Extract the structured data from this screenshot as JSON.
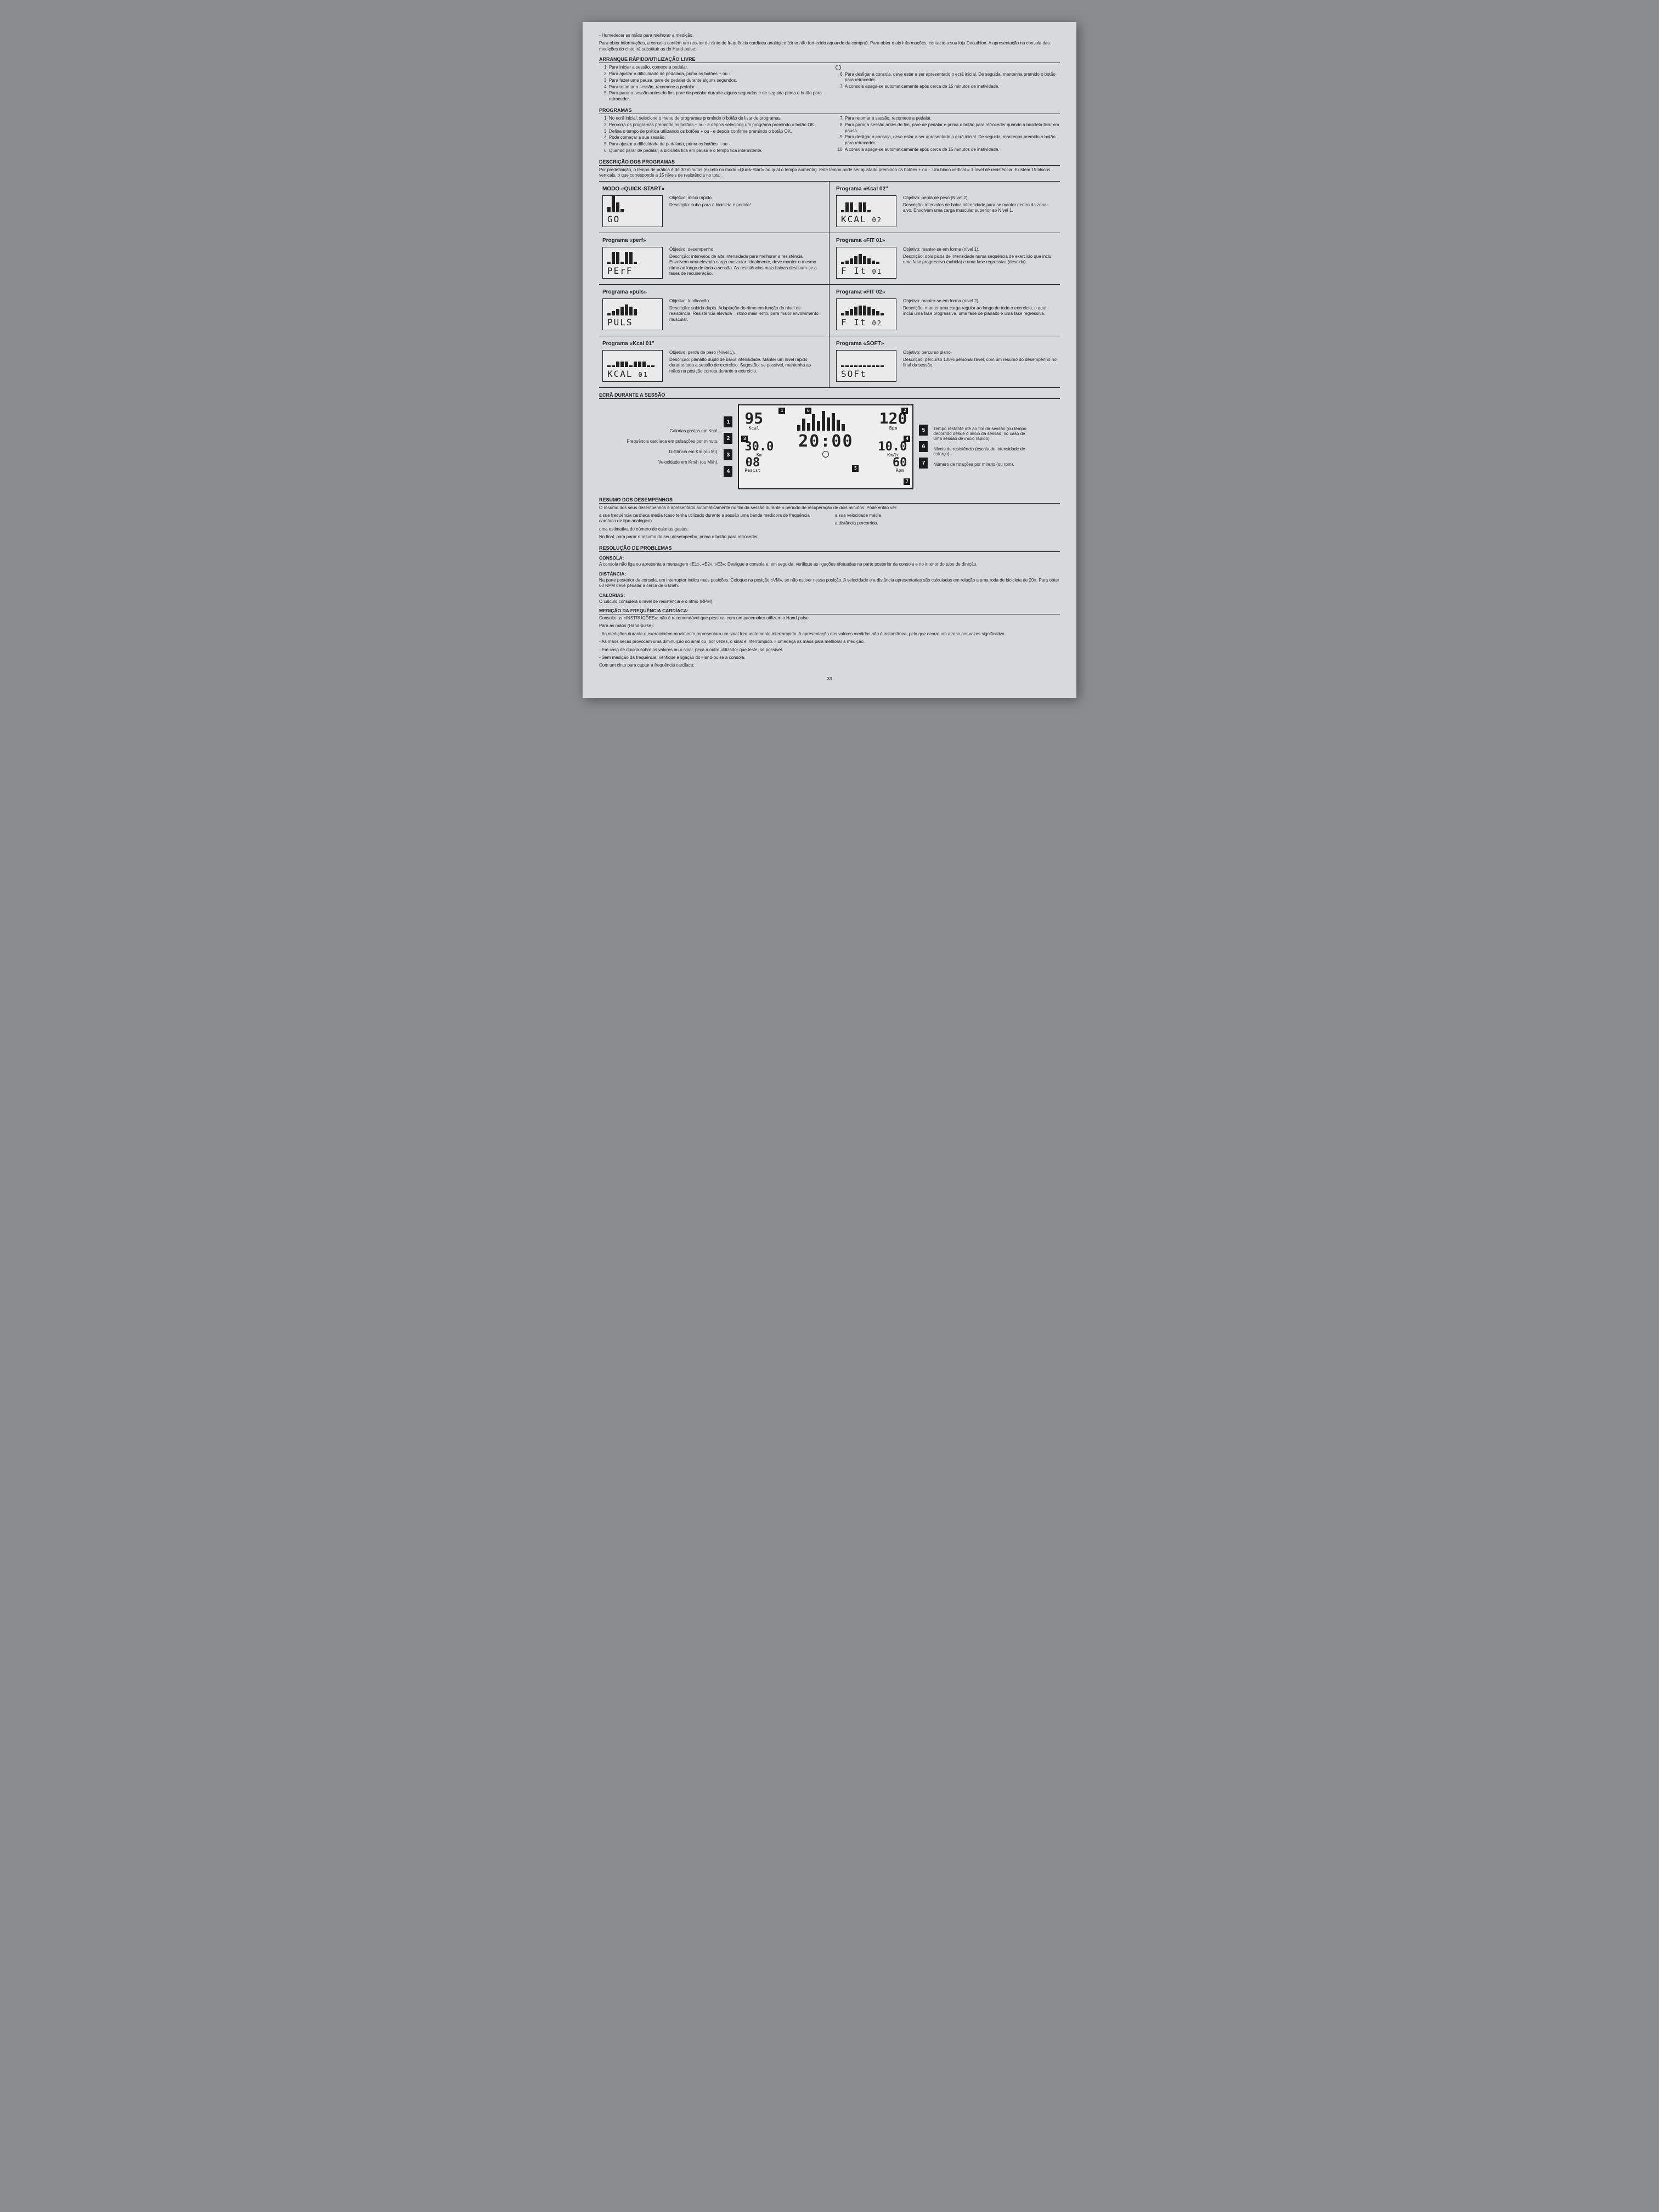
{
  "intro": {
    "tip": "- Humedecer as mãos para melhorar a medição.",
    "info": "Para obter informações, a consola contém um recetor de cinto de frequência cardíaca analógico (cinto não fornecido aquando da compra). Para obter mais informações, contacte a sua loja Decathlon. A apresentação na consola das medições do cinto irá substituir as do Hand-pulse."
  },
  "sections": {
    "quickstart_title": "ARRANQUE RÁPIDO/UTILIZAÇÃO LIVRE",
    "quickstart_left": [
      "Para iniciar a sessão, comece a pedalar.",
      "Para ajustar a dificuldade de pedalada, prima os botões + ou -.",
      "Para fazer uma pausa, pare de pedalar durante alguns segundos.",
      "Para retomar a sessão, recomece a pedalar.",
      "Para parar a sessão antes do fim, pare de pedalar durante alguns segundos e de seguida prima o botão para retroceder."
    ],
    "quickstart_right": [
      "Para desligar a consola, deve estar a ser apresentado o ecrã inicial. De seguida, mantenha premido o botão para retroceder.",
      "A consola apaga-se automaticamente após cerca de 15 minutos de inatividade."
    ],
    "programas_title": "PROGRAMAS",
    "programas_left": [
      "No ecrã inicial, selecione o menu de programas premindo o botão de lista de programas.",
      "Percorra os programas premindo os botões + ou - e depois selecione um programa premindo o botão OK.",
      "Defina o tempo de prática utilizando os botões + ou - e depois confirme premindo o botão OK.",
      "Pode começar a sua sessão.",
      "Para ajustar a dificuldade de pedalada, prima os botões + ou -.",
      "Quando parar de pedalar, a bicicleta fica em pausa e o tempo fica intermitente."
    ],
    "programas_right": [
      "Para retomar a sessão, recomece a pedalar.",
      "Para parar a sessão antes do fim, pare de pedalar e prima o botão para retroceder quando a bicicleta ficar em pausa.",
      "Para desligar a consola, deve estar a ser apresentado o ecrã inicial. De seguida, mantenha premido o botão para retroceder.",
      "A consola apaga-se automaticamente após cerca de 15 minutos de inatividade."
    ],
    "desc_title": "DESCRIÇÃO DOS PROGRAMAS",
    "desc_text": "Por predefinição, o tempo de prática é de 30 minutos (exceto no modo «Quick-Start» no qual o tempo aumenta). Este tempo pode ser ajustado premindo os botões + ou -. Um bloco vertical = 1 nível de resistência. Existem 15 blocos verticais, o que corresponde a 15 níveis de resistência no total."
  },
  "programs": [
    {
      "title": "MODO «QUICK-START»",
      "lcd": "GO",
      "sub": "",
      "bars": [
        10,
        30,
        18,
        6
      ],
      "obj": "Objetivo: início rápido.",
      "desc": "Descrição: suba para a bicicleta e pedale!"
    },
    {
      "title": "Programa «Kcal 02\"",
      "lcd": "KCAL",
      "sub": "02",
      "bars": [
        4,
        18,
        18,
        4,
        18,
        18,
        4
      ],
      "obj": "Objetivo: perda de peso (Nível 2).",
      "desc": "Descrição: intervalos de baixa intensidade para se manter dentro da zona-alvo. Envolvem uma carga muscular superior ao Nível 1."
    },
    {
      "title": "Programa «perf»",
      "lcd": "PErF",
      "sub": "",
      "bars": [
        4,
        22,
        22,
        4,
        22,
        22,
        4
      ],
      "obj": "Objetivo: desempenho",
      "desc": "Descrição: intervalos de alta intensidade para melhorar a resistência. Envolvem uma elevada carga muscular. Idealmente, deve manter o mesmo ritmo ao longo de toda a sessão. As resistências mais baixas destinam-se a fases de recuperação."
    },
    {
      "title": "Programa «FIT 01»",
      "lcd": "F It",
      "sub": "01",
      "bars": [
        4,
        6,
        10,
        14,
        18,
        14,
        10,
        6,
        4
      ],
      "obj": "Objetivo: manter-se em forma (nível 1).",
      "desc": "Descrição: dois picos de intensidade numa sequência de exercício que inclui uma fase progressiva (subida) e uma fase regressiva (descida)."
    },
    {
      "title": "Programa «puls»",
      "lcd": "PULS",
      "sub": "",
      "bars": [
        4,
        8,
        12,
        16,
        20,
        16,
        12
      ],
      "obj": "Objetivo: tonificação",
      "desc": "Descrição: subida dupla. Adaptação do ritmo em função do nível de resistência. Resistência elevada = ritmo mais lento, para maior envolvimento muscular."
    },
    {
      "title": "Programa «FIT 02»",
      "lcd": "F It",
      "sub": "02",
      "bars": [
        4,
        8,
        12,
        16,
        18,
        18,
        16,
        12,
        8,
        4
      ],
      "obj": "Objetivo: manter-se em forma (nível 2).",
      "desc": "Descrição: manter uma carga regular ao longo de todo o exercício, o qual inclui uma fase progressiva, uma fase de planalto e uma fase regressiva."
    },
    {
      "title": "Programa «Kcal 01\"",
      "lcd": "KCAL",
      "sub": "01",
      "bars": [
        3,
        3,
        10,
        10,
        10,
        3,
        10,
        10,
        10,
        3,
        3
      ],
      "obj": "Objetivo: perda de peso (Nível 1).",
      "desc": "Descrição: planalto duplo de baixa intensidade. Manter um nível rápido durante toda a sessão de exercício. Sugestão: se possível, mantenha as mãos na posição correta durante o exercício."
    },
    {
      "title": "Programa «SOFT»",
      "lcd": "SOFt",
      "sub": "",
      "bars": [
        3,
        3,
        3,
        3,
        3,
        3,
        3,
        3,
        3,
        3
      ],
      "obj": "Objetivo: percurso plano.",
      "desc": "Descrição: percurso 100% personalizável, com um resumo do desempenho no final da sessão."
    }
  ],
  "session": {
    "title": "ECRÃ DURANTE A SESSÃO",
    "left_legend": [
      "Calorias gastas em Kcal.",
      "Frequência cardíaca em pulsações por minuto.",
      "Distância em Km (ou Mi).",
      "Velocidade em Km/h (ou Mi/h)."
    ],
    "right_legend": [
      "Tempo restante até ao fim da sessão (ou tempo decorrido desde o início da sessão, no caso de uma sessão de início rápido).",
      "Níveis de resistência (escala de intensidade de esforço).",
      "Número de rotações por minuto (ou rpm)."
    ],
    "screen": {
      "kcal": "95",
      "kcal_lab": "Kcal",
      "bpm": "120",
      "bpm_lab": "Bpm",
      "km": "30.0",
      "km_lab": "Km",
      "kmh": "10.0",
      "kmh_lab": "Km/h",
      "time": "20:00",
      "resist": "08",
      "resist_lab": "Resist",
      "rpm": "60",
      "rpm_lab": "Rpm",
      "bars": [
        10,
        22,
        14,
        30,
        18,
        36,
        24,
        32,
        20,
        12
      ]
    }
  },
  "resumo": {
    "title": "RESUMO DOS DESEMPENHOS",
    "p1": "O resumo dos seus desempenhos é apresentado automaticamente no fim da sessão durante o período de recuperação de dois minutos. Pode então ver:",
    "bul1a": "a sua frequência cardíaca média (caso tenha utilizado durante a sessão uma banda medidora de frequência cardíaca de tipo analógico).",
    "bul1b": "a sua velocidade média.",
    "bul1c": "uma estimativa do número de calorias gastas.",
    "bul1d": "a distância percorrida.",
    "p2": "No final, para parar o resumo do seu desempenho, prima o botão para retroceder."
  },
  "trouble": {
    "title": "RESOLUÇÃO DE PROBLEMAS",
    "consola_h": "CONSOLA:",
    "consola_t": "A consola não liga ou apresenta a mensagem «E1», «E2», «E3»: Desligue a consola e, em seguida, verifique as ligações efetuadas na parte posterior da consola e no interior do tubo de direção.",
    "dist_h": "DISTÂNCIA:",
    "dist_t": "Na parte posterior da consola, um interruptor indica mais posições. Coloque na posição «VM», se não estiver nessa posição. A velocidade e a distância apresentadas são calculadas em relação a uma roda de bicicleta de 20». Para obter 60 RPM deve pedalar a cerca de 6 km/h.",
    "cal_h": "CALORIAS:",
    "cal_t": "O cálculo considera o nível de resistência e o ritmo (RPM).",
    "med_h": "MEDIÇÃO DA FREQUÊNCIA CARDÍACA:",
    "med_t1": "Consulte as «INSTRUÇÕES»: não é recomendável que pessoas com um pacemaker utilizem o Hand-pulse.",
    "med_t2": "Para as mãos (Hand-pulse):",
    "med_b1": "- As medições durante o exercício/em movimento representam um sinal frequentemente interrompido. A apresentação dos valores medidos não é instantânea, pelo que ocorre um atraso por vezes significativo.",
    "med_b2": "- As mãos secas provocam uma diminuição do sinal ou, por vezes, o sinal é interrompido. Humedeça as mãos para melhorar a medição.",
    "med_b3": "- Em caso de dúvida sobre os valores ou o sinal, peça a outro utilizador que teste, se possível.",
    "med_b4": "- Sem medição da frequência: verifique a ligação do Hand-pulse à consola.",
    "med_t3": "Com um cinto para captar a frequência cardíaca:"
  },
  "page_num": "33"
}
